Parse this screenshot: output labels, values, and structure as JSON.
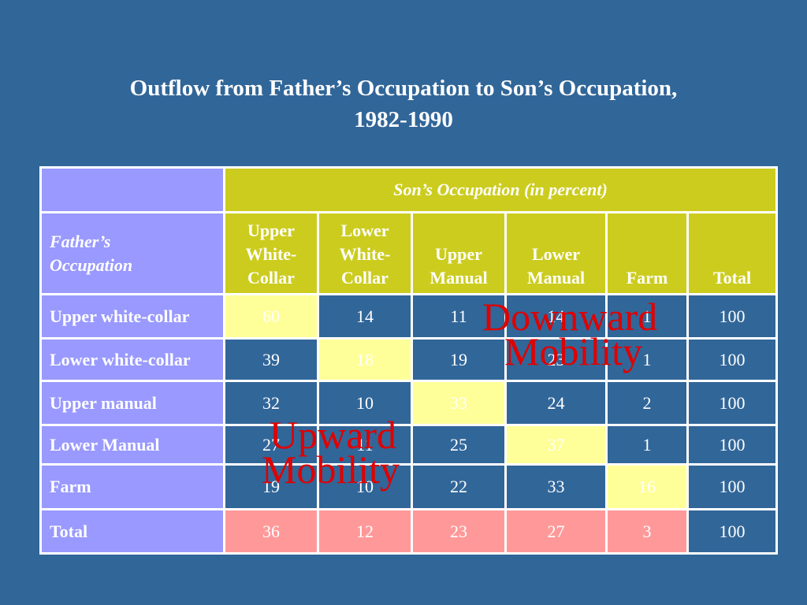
{
  "title": {
    "line1": "Outflow from Father’s Occupation to Son’s Occupation,",
    "line2": "1982-1990"
  },
  "table": {
    "span_header": "Son’s Occupation (in percent)",
    "father_header_line1": "Father’s",
    "father_header_line2": "Occupation",
    "columns": [
      [
        "Upper",
        "White-",
        "Collar"
      ],
      [
        "Lower",
        "White-",
        "Collar"
      ],
      [
        "Upper",
        "Manual"
      ],
      [
        "Lower",
        "Manual"
      ],
      [
        "Farm"
      ],
      [
        "Total"
      ]
    ],
    "rows": [
      {
        "label": "Upper white-collar",
        "values": [
          "60",
          "14",
          "11",
          "14",
          "1",
          "100"
        ]
      },
      {
        "label": "Lower white-collar",
        "values": [
          "39",
          "18",
          "19",
          "23",
          "1",
          "100"
        ]
      },
      {
        "label": "Upper manual",
        "values": [
          "32",
          "10",
          "33",
          "24",
          "2",
          "100"
        ]
      },
      {
        "label": "Lower Manual",
        "values": [
          "27",
          "11",
          "25",
          "37",
          "1",
          "100"
        ]
      },
      {
        "label": "Farm",
        "values": [
          "19",
          "10",
          "22",
          "33",
          "16",
          "100"
        ]
      }
    ],
    "total_row": {
      "label": "Total",
      "values": [
        "36",
        "12",
        "23",
        "27",
        "3",
        "100"
      ]
    }
  },
  "annotations": {
    "downward": [
      "Downward",
      "Mobility"
    ],
    "upward": [
      "Upward",
      "Mobility"
    ]
  },
  "colors": {
    "background": "#316699",
    "header": "#cccc1f",
    "label": "#9999ff",
    "diagonal": "#ffff99",
    "total_row": "#ff9999",
    "annotation": "#e00000"
  }
}
